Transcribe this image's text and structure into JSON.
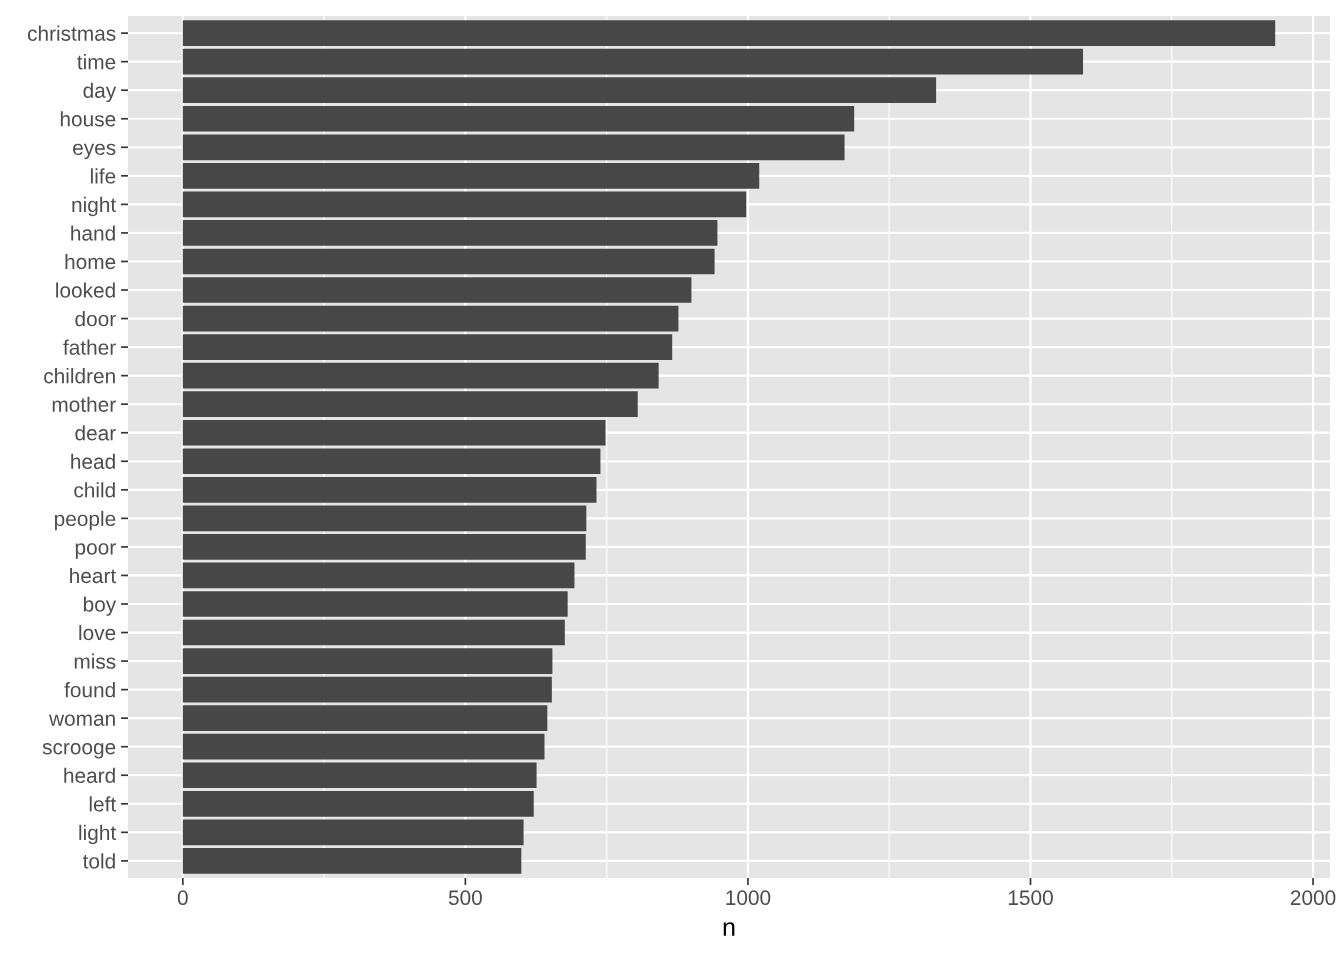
{
  "chart_data": {
    "type": "bar",
    "orientation": "horizontal",
    "xlabel": "n",
    "categories": [
      "christmas",
      "time",
      "day",
      "house",
      "eyes",
      "life",
      "night",
      "hand",
      "home",
      "looked",
      "door",
      "father",
      "children",
      "mother",
      "dear",
      "head",
      "child",
      "people",
      "poor",
      "heart",
      "boy",
      "love",
      "miss",
      "found",
      "woman",
      "scrooge",
      "heard",
      "left",
      "light",
      "told"
    ],
    "values": [
      1933,
      1593,
      1333,
      1188,
      1171,
      1020,
      997,
      946,
      941,
      900,
      877,
      866,
      842,
      805,
      748,
      739,
      732,
      714,
      713,
      693,
      681,
      676,
      654,
      653,
      645,
      640,
      626,
      621,
      603,
      599
    ],
    "color": "#474747",
    "xlim": [
      -97,
      2030
    ],
    "xticks": [
      0,
      500,
      1000,
      1500,
      2000
    ],
    "grid": true
  }
}
